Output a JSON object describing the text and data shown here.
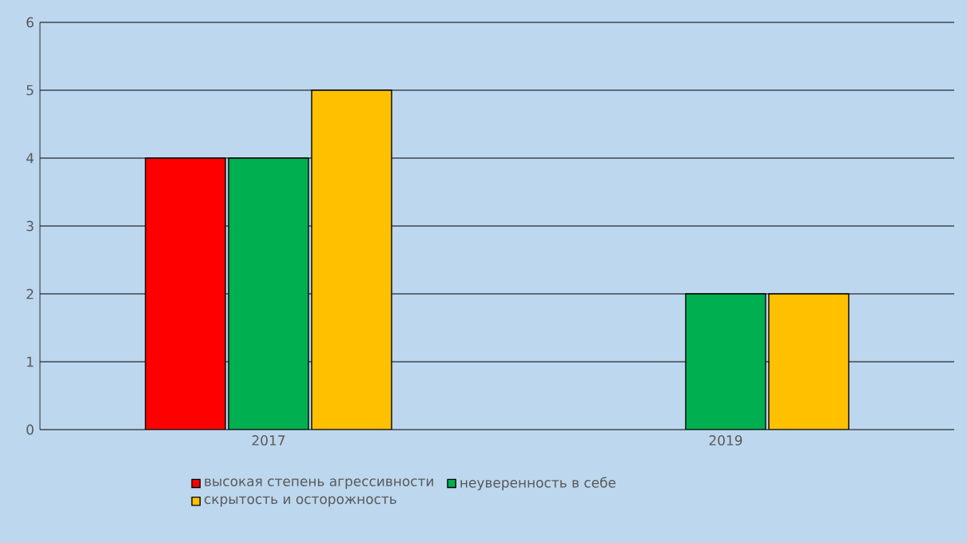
{
  "chart_data": {
    "type": "bar",
    "categories": [
      "2017",
      "2019"
    ],
    "series": [
      {
        "name": "высокая степень агрессивности",
        "color": "#ff0000",
        "values": [
          4,
          null
        ]
      },
      {
        "name": "неуверенность в себе",
        "color": "#00b050",
        "values": [
          4,
          2
        ]
      },
      {
        "name": "скрытость и осторожность",
        "color": "#ffc000",
        "values": [
          5,
          2
        ]
      }
    ],
    "ylim": [
      0,
      6
    ],
    "yticks": [
      0,
      1,
      2,
      3,
      4,
      5,
      6
    ],
    "grid": "y",
    "legend": "bottom"
  }
}
